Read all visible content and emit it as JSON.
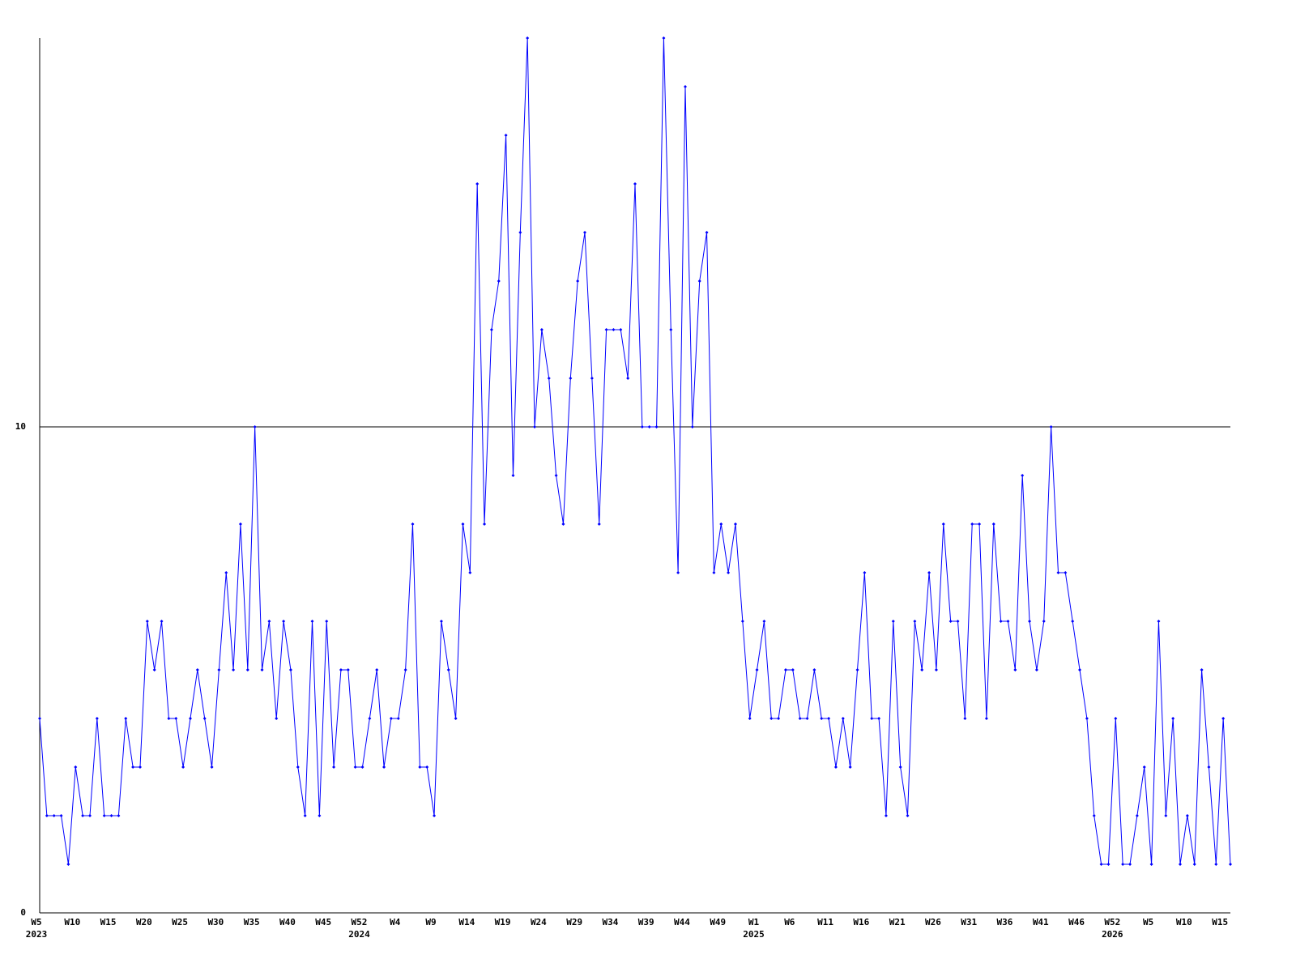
{
  "chart_data": {
    "type": "line",
    "categories": [
      "W5",
      null,
      null,
      null,
      null,
      "W10",
      null,
      null,
      null,
      null,
      "W15",
      null,
      null,
      null,
      null,
      "W20",
      null,
      null,
      null,
      null,
      "W25",
      null,
      null,
      null,
      null,
      "W30",
      null,
      null,
      null,
      null,
      "W35",
      null,
      null,
      null,
      null,
      "W40",
      null,
      null,
      null,
      null,
      "W45",
      null,
      null,
      null,
      null,
      "W52",
      null,
      null,
      null,
      null,
      "W4",
      null,
      null,
      null,
      null,
      "W9",
      null,
      null,
      null,
      null,
      "W14",
      null,
      null,
      null,
      null,
      "W19",
      null,
      null,
      null,
      null,
      "W24",
      null,
      null,
      null,
      null,
      "W29",
      null,
      null,
      null,
      null,
      "W34",
      null,
      null,
      null,
      null,
      "W39",
      null,
      null,
      null,
      null,
      "W44",
      null,
      null,
      null,
      null,
      "W49",
      null,
      null,
      null,
      null,
      "W1",
      null,
      null,
      null,
      null,
      "W6",
      null,
      null,
      null,
      null,
      "W11",
      null,
      null,
      null,
      null,
      "W16",
      null,
      null,
      null,
      null,
      "W21",
      null,
      null,
      null,
      null,
      "W26",
      null,
      null,
      null,
      null,
      "W31",
      null,
      null,
      null,
      null,
      "W36",
      null,
      null,
      null,
      null,
      "W41",
      null,
      null,
      null,
      null,
      "W46",
      null,
      null,
      null,
      null,
      "W52",
      null,
      null,
      null,
      null,
      "W5",
      null,
      null,
      null,
      null,
      "W10",
      null,
      null,
      null,
      null,
      "W15",
      null
    ],
    "years": [
      "2023",
      null,
      null,
      null,
      null,
      null,
      null,
      null,
      null,
      null,
      null,
      null,
      null,
      null,
      null,
      null,
      null,
      null,
      null,
      null,
      null,
      null,
      null,
      null,
      null,
      null,
      null,
      null,
      null,
      null,
      null,
      null,
      null,
      null,
      null,
      null,
      null,
      null,
      null,
      null,
      null,
      null,
      null,
      null,
      null,
      "2024",
      null,
      null,
      null,
      null,
      null,
      null,
      null,
      null,
      null,
      null,
      null,
      null,
      null,
      null,
      null,
      null,
      null,
      null,
      null,
      null,
      null,
      null,
      null,
      null,
      null,
      null,
      null,
      null,
      null,
      null,
      null,
      null,
      null,
      null,
      null,
      null,
      null,
      null,
      null,
      null,
      null,
      null,
      null,
      null,
      null,
      null,
      null,
      null,
      null,
      null,
      null,
      null,
      null,
      null,
      "2025",
      null,
      null,
      null,
      null,
      null,
      null,
      null,
      null,
      null,
      null,
      null,
      null,
      null,
      null,
      null,
      null,
      null,
      null,
      null,
      null,
      null,
      null,
      null,
      null,
      null,
      null,
      null,
      null,
      null,
      null,
      null,
      null,
      null,
      null,
      null,
      null,
      null,
      null,
      null,
      null,
      null,
      null,
      null,
      null,
      null,
      null,
      null,
      null,
      null,
      "2026",
      null,
      null,
      null,
      null,
      null,
      null,
      null,
      null,
      null,
      null,
      null,
      null,
      null,
      null,
      null,
      null
    ],
    "series": [
      {
        "color": "#0000ff",
        "values": [
          4,
          2,
          2,
          2,
          1,
          3,
          2,
          2,
          4,
          2,
          2,
          2,
          4,
          3,
          3,
          6,
          5,
          6,
          4,
          4,
          3,
          4,
          5,
          4,
          3,
          5,
          7,
          5,
          8,
          5,
          10,
          5,
          6,
          4,
          6,
          5,
          3,
          2,
          6,
          2,
          6,
          3,
          5,
          5,
          3,
          3,
          4,
          5,
          3,
          4,
          4,
          5,
          8,
          3,
          3,
          2,
          6,
          5,
          4,
          8,
          7,
          15,
          8,
          12,
          13,
          16,
          9,
          14,
          18,
          10,
          12,
          11,
          9,
          8,
          11,
          13,
          14,
          11,
          8,
          12,
          12,
          12,
          11,
          15,
          10,
          10,
          10,
          18,
          12,
          7,
          17,
          10,
          13,
          14,
          7,
          8,
          7,
          8,
          6,
          4,
          5,
          6,
          4,
          4,
          5,
          5,
          4,
          4,
          5,
          4,
          4,
          3,
          4,
          3,
          5,
          7,
          4,
          4,
          2,
          6,
          3,
          2,
          6,
          5,
          7,
          5,
          8,
          6,
          6,
          4,
          8,
          8,
          4,
          8,
          6,
          6,
          5,
          9,
          6,
          5,
          6,
          10,
          7,
          7,
          6,
          5,
          4,
          2,
          1,
          1,
          4,
          1,
          1,
          2,
          3,
          1,
          6,
          2,
          4,
          1,
          2,
          1,
          5,
          3,
          1,
          4,
          1
        ]
      }
    ],
    "ylim": [
      0,
      18
    ],
    "yticks": [
      0,
      10
    ],
    "grid": true
  }
}
